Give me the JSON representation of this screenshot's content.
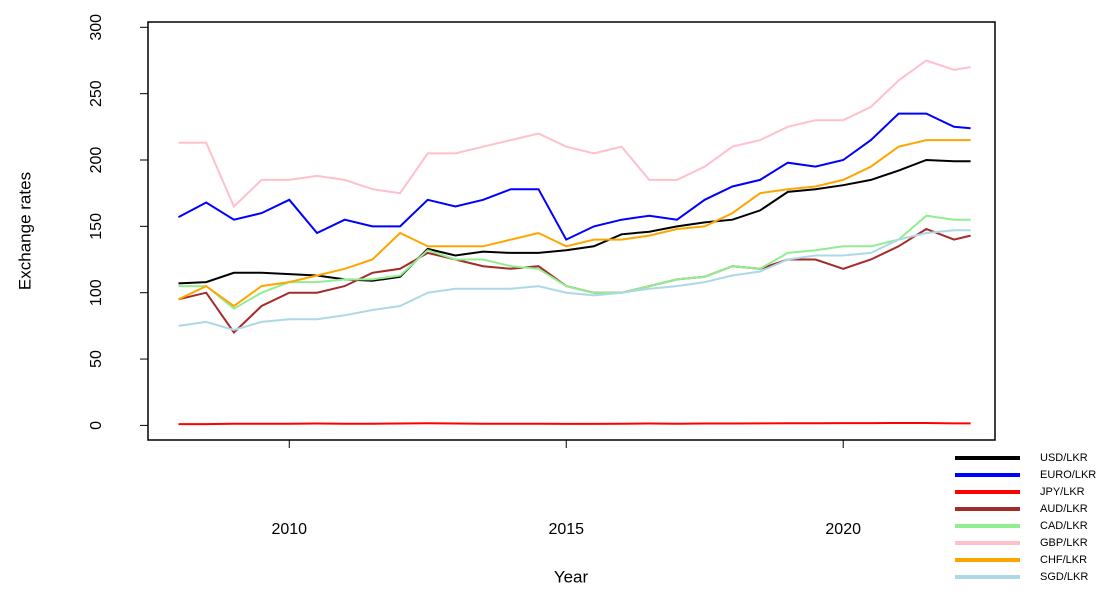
{
  "chart_data": {
    "type": "line",
    "xlabel": "Year",
    "ylabel": "Exchange rates",
    "x": [
      2008,
      2008.5,
      2009,
      2009.5,
      2010,
      2010.5,
      2011,
      2011.5,
      2012,
      2012.5,
      2013,
      2013.5,
      2014,
      2014.5,
      2015,
      2015.5,
      2016,
      2016.5,
      2017,
      2017.5,
      2018,
      2018.5,
      2019,
      2019.5,
      2020,
      2020.5,
      2021,
      2021.5,
      2022,
      2022.3
    ],
    "series": [
      {
        "name": "USD/LKR",
        "color": "#000000",
        "values": [
          107,
          108,
          115,
          115,
          114,
          113,
          110,
          109,
          112,
          133,
          128,
          131,
          130,
          130,
          132,
          135,
          144,
          146,
          150,
          153,
          155,
          162,
          176,
          178,
          181,
          185,
          192,
          200,
          199,
          199
        ]
      },
      {
        "name": "EURO/LKR",
        "color": "#0000ff",
        "values": [
          157,
          168,
          155,
          160,
          170,
          145,
          155,
          150,
          150,
          170,
          165,
          170,
          178,
          178,
          140,
          150,
          155,
          158,
          155,
          170,
          180,
          185,
          198,
          195,
          200,
          215,
          235,
          235,
          225,
          224
        ]
      },
      {
        "name": "JPY/LKR",
        "color": "#ff0000",
        "values": [
          1,
          1,
          1.2,
          1.3,
          1.3,
          1.4,
          1.3,
          1.3,
          1.4,
          1.6,
          1.4,
          1.3,
          1.3,
          1.3,
          1.1,
          1.1,
          1.3,
          1.4,
          1.3,
          1.4,
          1.4,
          1.5,
          1.6,
          1.6,
          1.7,
          1.7,
          1.8,
          1.8,
          1.5,
          1.5
        ]
      },
      {
        "name": "AUD/LKR",
        "color": "#a52a2a",
        "values": [
          95,
          100,
          70,
          90,
          100,
          100,
          105,
          115,
          118,
          130,
          125,
          120,
          118,
          120,
          105,
          100,
          100,
          105,
          110,
          112,
          120,
          118,
          125,
          125,
          118,
          125,
          135,
          148,
          140,
          143
        ]
      },
      {
        "name": "CAD/LKR",
        "color": "#90ee90",
        "values": [
          105,
          105,
          88,
          100,
          108,
          108,
          110,
          110,
          113,
          132,
          125,
          125,
          120,
          118,
          105,
          100,
          100,
          105,
          110,
          112,
          120,
          118,
          130,
          132,
          135,
          135,
          140,
          158,
          155,
          155
        ]
      },
      {
        "name": "GBP/LKR",
        "color": "#ffc0cb",
        "values": [
          213,
          213,
          165,
          185,
          185,
          188,
          185,
          178,
          175,
          205,
          205,
          210,
          215,
          220,
          210,
          205,
          210,
          185,
          185,
          195,
          210,
          215,
          225,
          230,
          230,
          240,
          260,
          275,
          268,
          270
        ]
      },
      {
        "name": "CHF/LKR",
        "color": "#ffa500",
        "values": [
          95,
          105,
          90,
          105,
          108,
          113,
          118,
          125,
          145,
          135,
          135,
          135,
          140,
          145,
          135,
          140,
          140,
          143,
          148,
          150,
          160,
          175,
          178,
          180,
          185,
          195,
          210,
          215,
          215,
          215
        ]
      },
      {
        "name": "SGD/LKR",
        "color": "#add8e6",
        "values": [
          75,
          78,
          72,
          78,
          80,
          80,
          83,
          87,
          90,
          100,
          103,
          103,
          103,
          105,
          100,
          98,
          100,
          103,
          105,
          108,
          113,
          116,
          125,
          128,
          128,
          130,
          140,
          145,
          147,
          147
        ]
      }
    ],
    "xlim": [
      2007.45,
      2022.74
    ],
    "xticks": [
      2010,
      2015,
      2020
    ],
    "ylim": [
      -11,
      304
    ],
    "yticks": [
      0,
      50,
      100,
      150,
      200,
      250,
      300
    ],
    "legend": "bottom-right"
  }
}
